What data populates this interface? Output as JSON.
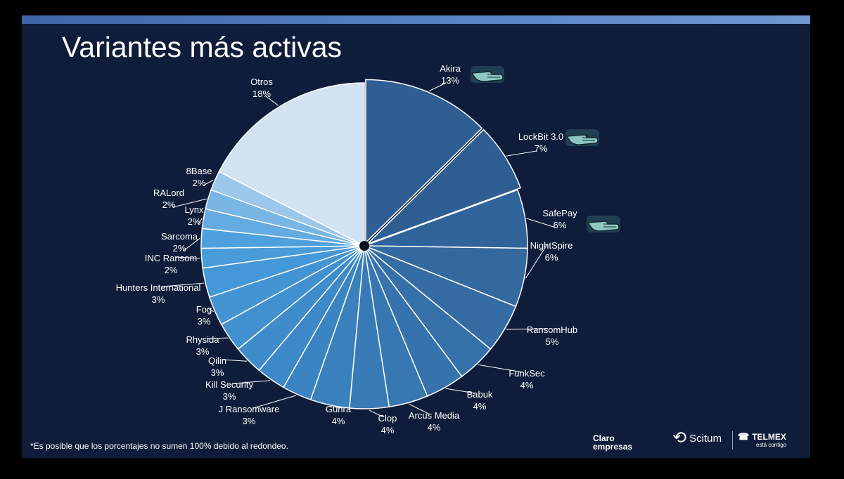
{
  "slide": {
    "title": "Variantes más activas",
    "footnote": "*Es posible que los porcentajes no sumen 100% debido al redondeo.",
    "logos": {
      "claro_line1": "Claro",
      "claro_line2": "empresas",
      "scitum": "Scitum",
      "telmex": "TELMEX",
      "telmex_tagline": "está contigo"
    }
  },
  "chart_data": {
    "type": "pie",
    "title": "Variantes más activas",
    "slices": [
      {
        "label": "Akira",
        "value": 13,
        "display": "13%",
        "color": "#2f5f92",
        "highlighted": true
      },
      {
        "label": "LockBit 3.0",
        "value": 7,
        "display": "7%",
        "color": "#2f5f92",
        "highlighted": true
      },
      {
        "label": "SafePay",
        "value": 6,
        "display": "6%",
        "color": "#30639a",
        "highlighted": true
      },
      {
        "label": "NightSpire",
        "value": 6,
        "display": "6%",
        "color": "#33699f"
      },
      {
        "label": "RansomHub",
        "value": 5,
        "display": "5%",
        "color": "#346ca3"
      },
      {
        "label": "FunkSec",
        "value": 4,
        "display": "4%",
        "color": "#3570a8"
      },
      {
        "label": "Babuk",
        "value": 4,
        "display": "4%",
        "color": "#3673ad"
      },
      {
        "label": "Arcus Media",
        "value": 4,
        "display": "4%",
        "color": "#3777b2"
      },
      {
        "label": "Clop",
        "value": 4,
        "display": "4%",
        "color": "#387bb7"
      },
      {
        "label": "Gunra",
        "value": 4,
        "display": "4%",
        "color": "#3a80bd"
      },
      {
        "label": "J Ransomware",
        "value": 3,
        "display": "3%",
        "color": "#3b84c2"
      },
      {
        "label": "Kill Security",
        "value": 3,
        "display": "3%",
        "color": "#3d88c7"
      },
      {
        "label": "Qilin",
        "value": 3,
        "display": "3%",
        "color": "#3f8ccb"
      },
      {
        "label": "Rhysida",
        "value": 3,
        "display": "3%",
        "color": "#4190cf"
      },
      {
        "label": "Fog",
        "value": 3,
        "display": "3%",
        "color": "#4394d3"
      },
      {
        "label": "Hunters International",
        "value": 3,
        "display": "3%",
        "color": "#4598d7"
      },
      {
        "label": "INC Ransom",
        "value": 2,
        "display": "2%",
        "color": "#489cda"
      },
      {
        "label": "Sarcoma",
        "value": 2,
        "display": "2%",
        "color": "#4ea1dd"
      },
      {
        "label": "Lynx",
        "value": 2,
        "display": "2%",
        "color": "#63abe0"
      },
      {
        "label": "RALord",
        "value": 2,
        "display": "2%",
        "color": "#78b6e4"
      },
      {
        "label": "8Base",
        "value": 2,
        "display": "2%",
        "color": "#9cc6ea"
      },
      {
        "label": "Otros",
        "value": 18,
        "display": "18%",
        "color": "#d3e2f3"
      }
    ],
    "highlight_icon": "pointing-hand-icon"
  }
}
